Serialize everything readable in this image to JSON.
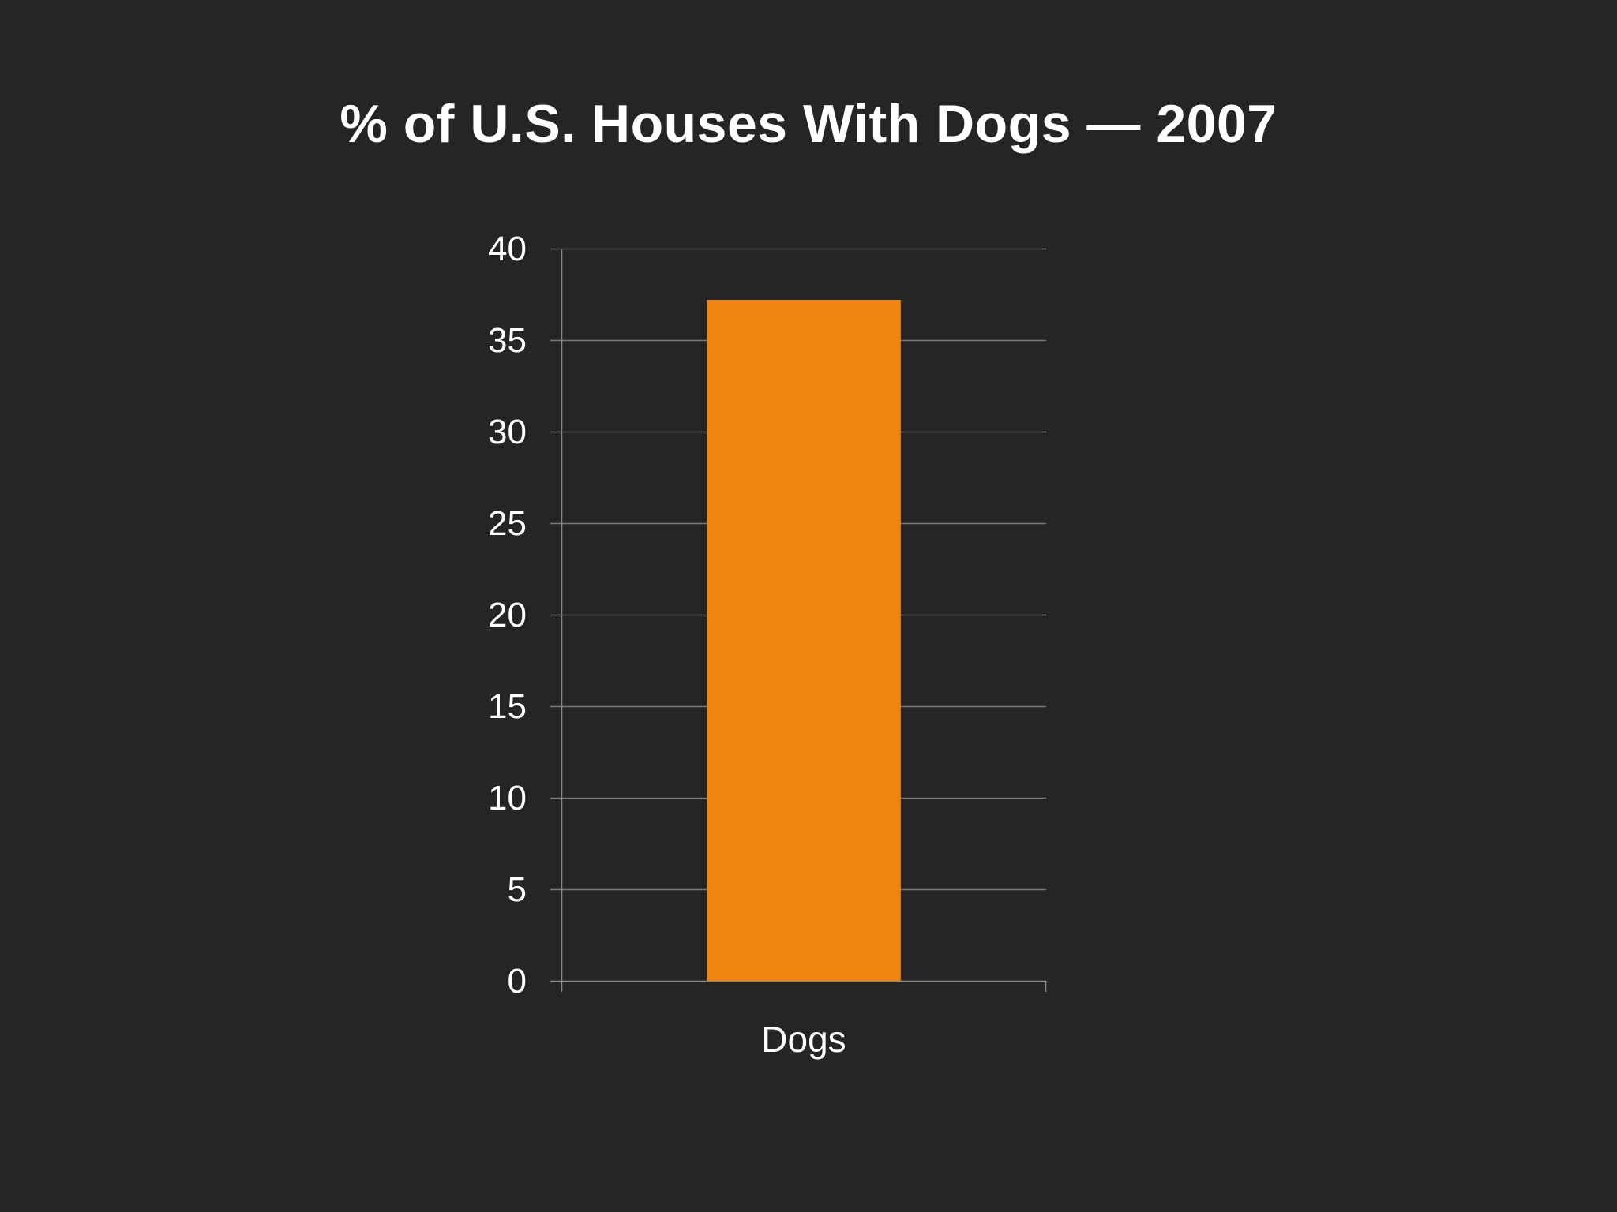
{
  "title": "% of U.S. Houses With Dogs — 2007",
  "colors": {
    "background": "#252525",
    "bar": "#ef860d",
    "grid": "#7a7a7a",
    "axis": "#8a8a8a",
    "text": "#ffffff"
  },
  "chart_data": {
    "type": "bar",
    "title": "% of U.S. Houses With Dogs — 2007",
    "categories": [
      "Dogs"
    ],
    "values": [
      37.2
    ],
    "xlabel": "",
    "ylabel": "",
    "ylim": [
      0,
      40
    ],
    "yticks": [
      0,
      5,
      10,
      15,
      20,
      25,
      30,
      35,
      40
    ],
    "grid": true,
    "legend": "none"
  }
}
